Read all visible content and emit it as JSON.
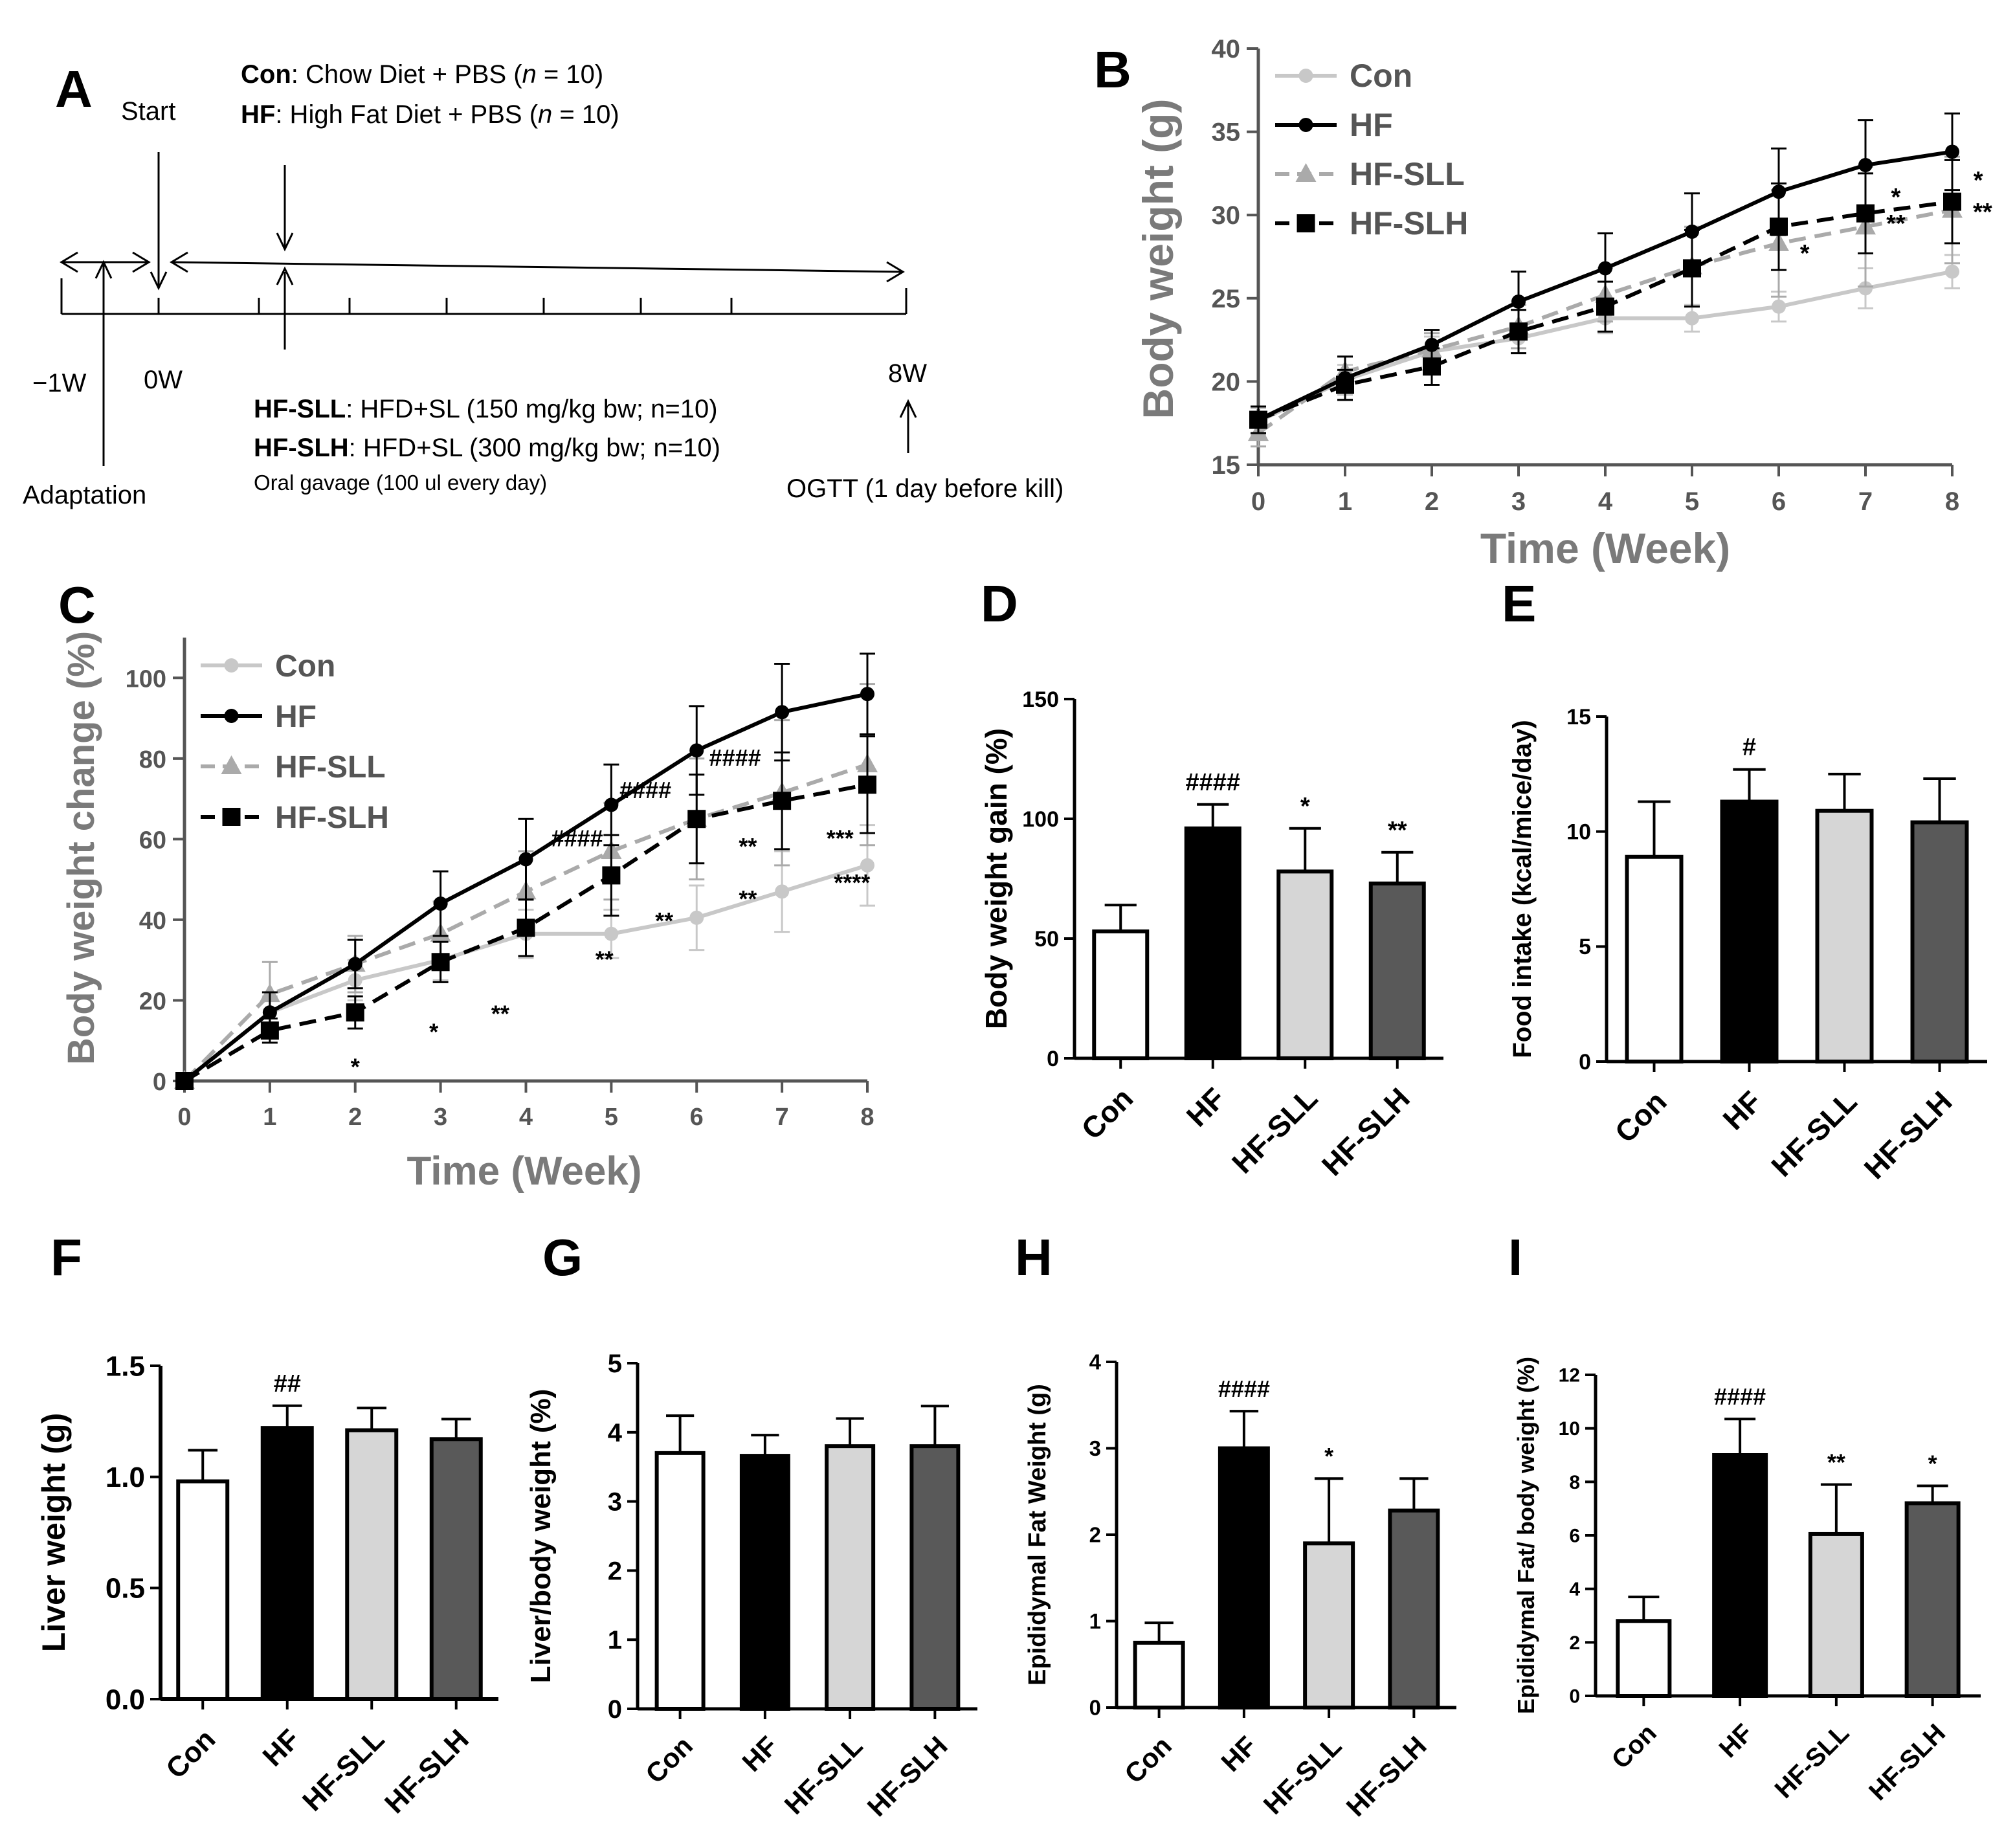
{
  "panels": {
    "A": {
      "label": "A",
      "groups_top": [
        {
          "bold": "Con",
          "rest": ": Chow Diet + PBS (",
          "n": "n",
          "tail": " = 10)"
        },
        {
          "bold": "HF",
          "rest": ": High Fat Diet + PBS (",
          "n": "n",
          "tail": " = 10)"
        }
      ],
      "groups_bottom": [
        {
          "bold": "HF-SLL",
          "rest": ": HFD+SL (150 mg/kg bw; n=10)"
        },
        {
          "bold": "HF-SLH",
          "rest": ": HFD+SL (300 mg/kg bw; n=10)"
        }
      ],
      "start": "Start",
      "adaptation": "Adaptation",
      "oral": "Oral gavage (100 ul every day)",
      "ogtt": "OGTT (1 day before kill)",
      "ticks": [
        "−1W",
        "0W",
        "8W"
      ]
    }
  },
  "chart_data": [
    {
      "panel": "B",
      "type": "line",
      "title": "",
      "xlabel": "Time (Week)",
      "ylabel": "Body weight (g)",
      "x": [
        0,
        1,
        2,
        3,
        4,
        5,
        6,
        7,
        8
      ],
      "xlim": [
        0,
        8
      ],
      "ylim": [
        15,
        40
      ],
      "yticks": [
        15,
        20,
        25,
        30,
        35,
        40
      ],
      "series": [
        {
          "name": "Con",
          "values": [
            17.6,
            20.1,
            21.8,
            22.6,
            23.8,
            23.8,
            24.5,
            25.6,
            26.6
          ],
          "errors": [
            0.8,
            0.9,
            0.9,
            0.9,
            0.9,
            0.8,
            0.9,
            1.2,
            1.0
          ],
          "color": "#c8c8c8",
          "marker": "circle",
          "dash": false
        },
        {
          "name": "HF",
          "values": [
            17.7,
            20.2,
            22.2,
            24.8,
            26.8,
            29.0,
            31.4,
            33.0,
            33.8
          ],
          "errors": [
            0.8,
            1.3,
            0.9,
            1.8,
            2.1,
            2.3,
            2.6,
            2.7,
            2.3
          ],
          "color": "#000000",
          "marker": "circle",
          "dash": false
        },
        {
          "name": "HF-SLL",
          "values": [
            16.9,
            20.6,
            21.9,
            23.3,
            25.2,
            26.9,
            28.3,
            29.3,
            30.3
          ],
          "errors": [
            0.8,
            0.9,
            1.0,
            1.3,
            1.6,
            2.4,
            3.2,
            3.6,
            3.2
          ],
          "color": "#aaaaaa",
          "marker": "triangle",
          "dash": true
        },
        {
          "name": "HF-SLH",
          "values": [
            17.7,
            19.8,
            20.9,
            23.0,
            24.5,
            26.8,
            29.3,
            30.1,
            30.8
          ],
          "errors": [
            0.8,
            0.9,
            1.1,
            1.3,
            1.5,
            2.3,
            2.6,
            2.4,
            2.5
          ],
          "color": "#000000",
          "marker": "square",
          "dash": true
        }
      ],
      "annotations": [
        {
          "text": "*",
          "x": 6.3,
          "y": 27.2
        },
        {
          "text": "*",
          "x": 7.35,
          "y": 30.6
        },
        {
          "text": "**",
          "x": 7.35,
          "y": 29.0
        },
        {
          "text": "*",
          "x": 8.3,
          "y": 31.6
        },
        {
          "text": "**",
          "x": 8.35,
          "y": 29.7
        }
      ]
    },
    {
      "panel": "C",
      "type": "line",
      "title": "",
      "xlabel": "Time (Week)",
      "ylabel": "Body weight change (%)",
      "x": [
        0,
        1,
        2,
        3,
        4,
        5,
        6,
        7,
        8
      ],
      "xlim": [
        0,
        8
      ],
      "ylim": [
        0,
        110
      ],
      "yticks": [
        0,
        20,
        40,
        60,
        80,
        100
      ],
      "series": [
        {
          "name": "Con",
          "values": [
            0,
            17,
            25,
            30,
            36.5,
            36.5,
            40.5,
            47,
            53.5
          ],
          "errors": [
            0,
            4,
            5,
            5,
            6,
            6,
            8,
            10,
            10
          ],
          "color": "#c8c8c8",
          "marker": "circle",
          "dash": false
        },
        {
          "name": "HF",
          "values": [
            0,
            17,
            29,
            44,
            55,
            68.5,
            82,
            91.5,
            96
          ],
          "errors": [
            0,
            5,
            6,
            8,
            10,
            10,
            11,
            12,
            10
          ],
          "color": "#000000",
          "marker": "circle",
          "dash": false
        },
        {
          "name": "HF-SLL",
          "values": [
            0,
            21.5,
            29,
            36.5,
            47,
            57,
            65,
            71.5,
            78.5
          ],
          "errors": [
            0,
            8,
            7,
            8,
            10,
            12,
            15,
            18,
            20
          ],
          "color": "#aaaaaa",
          "marker": "triangle",
          "dash": true
        },
        {
          "name": "HF-SLH",
          "values": [
            0,
            12.5,
            17,
            29.5,
            38,
            51,
            65,
            69.5,
            73.5
          ],
          "errors": [
            0,
            3,
            4,
            5,
            7,
            10,
            11,
            12,
            12
          ],
          "color": "#000000",
          "marker": "square",
          "dash": true
        }
      ],
      "annotations": [
        {
          "text": "*",
          "x": 2.0,
          "y": 1.5
        },
        {
          "text": "*",
          "x": 2.92,
          "y": 10.2
        },
        {
          "text": "**",
          "x": 3.7,
          "y": 14.7
        },
        {
          "text": "####",
          "x": 4.6,
          "y": 58.2
        },
        {
          "text": "**",
          "x": 4.92,
          "y": 28.2
        },
        {
          "text": "####",
          "x": 5.4,
          "y": 70.2
        },
        {
          "text": "**",
          "x": 5.62,
          "y": 37.7
        },
        {
          "text": "####",
          "x": 6.45,
          "y": 78.2
        },
        {
          "text": "**",
          "x": 6.6,
          "y": 56.2
        },
        {
          "text": "**",
          "x": 6.6,
          "y": 43.2
        },
        {
          "text": "***",
          "x": 7.68,
          "y": 58.2
        },
        {
          "text": "****",
          "x": 7.82,
          "y": 47.2
        }
      ]
    },
    {
      "panel": "D",
      "type": "bar",
      "categories": [
        "Con",
        "HF",
        "HF-SLL",
        "HF-SLH"
      ],
      "values": [
        53,
        96,
        78,
        73
      ],
      "errors": [
        11,
        10,
        18,
        13
      ],
      "annotations": [
        "",
        "####",
        "*",
        "**"
      ],
      "ylabel": "Body weight gain (%)",
      "ylim": [
        0,
        150
      ],
      "yticks": [
        0,
        50,
        100,
        150
      ]
    },
    {
      "panel": "E",
      "type": "bar",
      "categories": [
        "Con",
        "HF",
        "HF-SLL",
        "HF-SLH"
      ],
      "values": [
        8.9,
        11.3,
        10.9,
        10.4
      ],
      "errors": [
        2.4,
        1.4,
        1.6,
        1.9
      ],
      "annotations": [
        "",
        "#",
        "",
        ""
      ],
      "ylabel": "Food intake (kcal/mice/day)",
      "ylim": [
        0,
        15
      ],
      "yticks": [
        0,
        5,
        10,
        15
      ]
    },
    {
      "panel": "F",
      "type": "bar",
      "categories": [
        "Con",
        "HF",
        "HF-SLL",
        "HF-SLH"
      ],
      "values": [
        0.98,
        1.22,
        1.21,
        1.17
      ],
      "errors": [
        0.14,
        0.1,
        0.1,
        0.09
      ],
      "annotations": [
        "",
        "##",
        "",
        ""
      ],
      "ylabel": "Liver weight (g)",
      "ylim": [
        0,
        1.5
      ],
      "yticks": [
        "0.0",
        "0.5",
        "1.0",
        "1.5"
      ]
    },
    {
      "panel": "G",
      "type": "bar",
      "categories": [
        "Con",
        "HF",
        "HF-SLL",
        "HF-SLH"
      ],
      "values": [
        3.7,
        3.66,
        3.8,
        3.8
      ],
      "errors": [
        0.54,
        0.3,
        0.4,
        0.58
      ],
      "annotations": [
        "",
        "",
        "",
        ""
      ],
      "ylabel": "Liver/body weight (%)",
      "ylim": [
        0,
        5
      ],
      "yticks": [
        0,
        1,
        2,
        3,
        4,
        5
      ]
    },
    {
      "panel": "H",
      "type": "bar",
      "categories": [
        "Con",
        "HF",
        "HF-SLL",
        "HF-SLH"
      ],
      "values": [
        0.75,
        3.0,
        1.9,
        2.28
      ],
      "errors": [
        0.23,
        0.43,
        0.75,
        0.37
      ],
      "annotations": [
        "",
        "####",
        "*",
        ""
      ],
      "ylabel": "Epididymal Fat Weight (g)",
      "ylim": [
        0,
        4
      ],
      "yticks": [
        0,
        1,
        2,
        3,
        4
      ]
    },
    {
      "panel": "I",
      "type": "bar",
      "categories": [
        "Con",
        "HF",
        "HF-SLL",
        "HF-SLH"
      ],
      "values": [
        2.8,
        9.0,
        6.05,
        7.2
      ],
      "errors": [
        0.9,
        1.35,
        1.85,
        0.65
      ],
      "annotations": [
        "",
        "####",
        "**",
        "*"
      ],
      "ylabel": "Epididymal Fat/ body weight (%)",
      "ylim": [
        0,
        12
      ],
      "yticks": [
        0,
        2,
        4,
        6,
        8,
        10,
        12
      ]
    }
  ]
}
